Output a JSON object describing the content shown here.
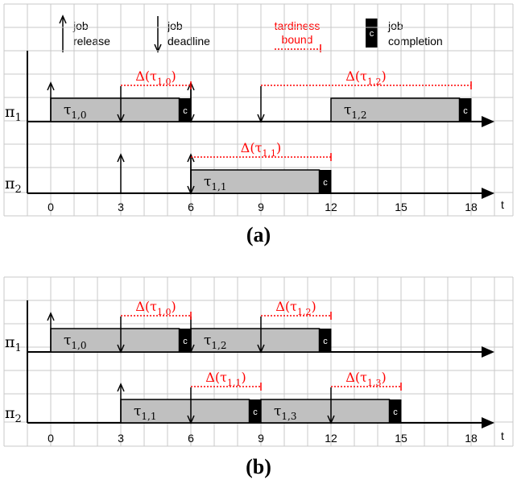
{
  "legend": {
    "release_line1": "job",
    "release_line2": "release",
    "deadline_line1": "job",
    "deadline_line2": "deadline",
    "tardiness_line1": "tardiness",
    "tardiness_line2": "bound",
    "completion_line1": "job",
    "completion_line2": "completion",
    "completion_symbol": "c"
  },
  "axis": {
    "t_label": "t",
    "ticks": [
      "0",
      "3",
      "6",
      "9",
      "12",
      "15",
      "18"
    ]
  },
  "colors": {
    "bar_fill": "#c0c0c0",
    "tardiness": "#ff0000",
    "grid": "#c8c8c8"
  },
  "panels": [
    {
      "label": "(a)",
      "processors": [
        {
          "name": "π",
          "sub": "1"
        },
        {
          "name": "π",
          "sub": "2"
        }
      ],
      "jobs": [
        {
          "proc": 0,
          "start": 0,
          "end": 5.5,
          "name": "τ",
          "sub": "1,0"
        },
        {
          "proc": 0,
          "start": 12,
          "end": 17.5,
          "name": "τ",
          "sub": "1,2"
        },
        {
          "proc": 1,
          "start": 6,
          "end": 11.5,
          "name": "τ",
          "sub": "1,1"
        }
      ],
      "releases": [
        {
          "proc": 0,
          "t": 0
        },
        {
          "proc": 0,
          "t": 6
        },
        {
          "proc": 1,
          "t": 3
        },
        {
          "proc": 1,
          "t": 6
        }
      ],
      "deadlines": [
        {
          "proc": 0,
          "t": 3
        },
        {
          "proc": 0,
          "t": 6
        },
        {
          "proc": 0,
          "t": 9
        },
        {
          "proc": 1,
          "t": 6
        }
      ],
      "tardiness": [
        {
          "proc": 0,
          "from": 3,
          "to": 6,
          "name": "Δ(τ",
          "sub": "1,0",
          "close": ")"
        },
        {
          "proc": 0,
          "from": 9,
          "to": 18,
          "name": "Δ(τ",
          "sub": "1,2",
          "close": ")"
        },
        {
          "proc": 1,
          "from": 6,
          "to": 12,
          "name": "Δ(τ",
          "sub": "1,1",
          "close": ")"
        }
      ]
    },
    {
      "label": "(b)",
      "processors": [
        {
          "name": "π",
          "sub": "1"
        },
        {
          "name": "π",
          "sub": "2"
        }
      ],
      "jobs": [
        {
          "proc": 0,
          "start": 0,
          "end": 5.5,
          "name": "τ",
          "sub": "1,0"
        },
        {
          "proc": 0,
          "start": 6,
          "end": 11.5,
          "name": "τ",
          "sub": "1,2"
        },
        {
          "proc": 1,
          "start": 3,
          "end": 8.5,
          "name": "τ",
          "sub": "1,1"
        },
        {
          "proc": 1,
          "start": 9,
          "end": 14.5,
          "name": "τ",
          "sub": "1,3"
        }
      ],
      "releases": [
        {
          "proc": 0,
          "t": 0
        },
        {
          "proc": 1,
          "t": 3
        }
      ],
      "deadlines": [
        {
          "proc": 0,
          "t": 3
        },
        {
          "proc": 0,
          "t": 6
        },
        {
          "proc": 0,
          "t": 9
        },
        {
          "proc": 1,
          "t": 6
        },
        {
          "proc": 1,
          "t": 12
        }
      ],
      "tardiness": [
        {
          "proc": 0,
          "from": 3,
          "to": 6,
          "name": "Δ(τ",
          "sub": "1,0",
          "close": ")"
        },
        {
          "proc": 0,
          "from": 9,
          "to": 12,
          "name": "Δ(τ",
          "sub": "1,2",
          "close": ")"
        },
        {
          "proc": 1,
          "from": 6,
          "to": 9,
          "name": "Δ(τ",
          "sub": "1,1",
          "close": ")"
        },
        {
          "proc": 1,
          "from": 12,
          "to": 15,
          "name": "Δ(τ",
          "sub": "1,3",
          "close": ")"
        }
      ]
    }
  ]
}
